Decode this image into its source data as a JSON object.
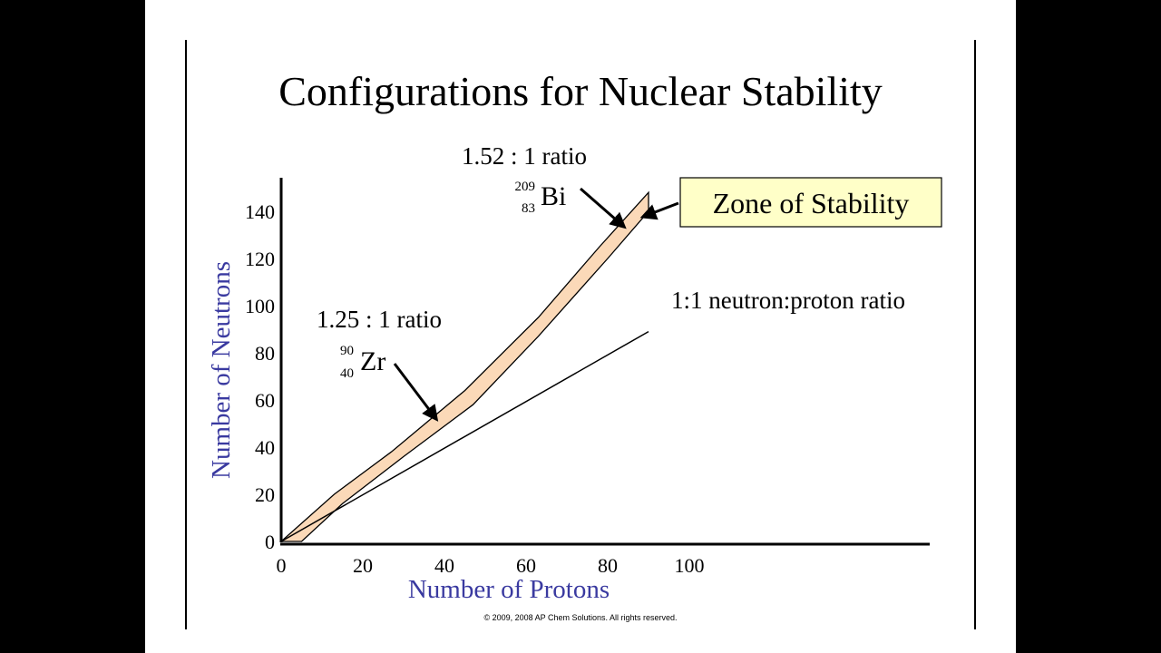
{
  "slide": {
    "title": "Configurations for Nuclear Stability",
    "copyright": "© 2009, 2008 AP Chem Solutions.  All rights reserved."
  },
  "colors": {
    "background": "#000000",
    "slide": "#ffffff",
    "axis_title": "#3a3aa0",
    "band_fill": "#fbd9b8",
    "callout_fill": "#ffffc8"
  },
  "chart_data": {
    "type": "area",
    "xlabel": "Number of Protons",
    "ylabel": "Number of Neutrons",
    "xlim": [
      0,
      100
    ],
    "ylim": [
      0,
      140
    ],
    "x_ticks": [
      0,
      20,
      40,
      60,
      80,
      100
    ],
    "y_ticks": [
      0,
      20,
      40,
      60,
      80,
      100,
      120,
      140
    ],
    "grid": false,
    "series": [
      {
        "name": "Zone of Stability",
        "upper": [
          [
            0,
            0
          ],
          [
            13,
            20
          ],
          [
            27,
            38
          ],
          [
            45,
            64
          ],
          [
            63,
            95
          ],
          [
            78,
            125
          ],
          [
            90,
            148
          ]
        ],
        "lower": [
          [
            5,
            0
          ],
          [
            15,
            16
          ],
          [
            30,
            36
          ],
          [
            47,
            58
          ],
          [
            63,
            87
          ],
          [
            80,
            120
          ],
          [
            90,
            140
          ]
        ]
      },
      {
        "name": "1:1 neutron:proton ratio",
        "points": [
          [
            0,
            0
          ],
          [
            90,
            89
          ]
        ]
      }
    ],
    "annotations": [
      {
        "id": "bi",
        "ratio": "1.52 : 1 ratio",
        "mass": "209",
        "atomic": "83",
        "symbol": "Bi",
        "x": 83,
        "y": 126
      },
      {
        "id": "zr",
        "ratio": "1.25 : 1 ratio",
        "mass": "90",
        "atomic": "40",
        "symbol": "Zr",
        "x": 40,
        "y": 50
      }
    ],
    "callout": "Zone of Stability",
    "line_label": "1:1 neutron:proton ratio"
  }
}
